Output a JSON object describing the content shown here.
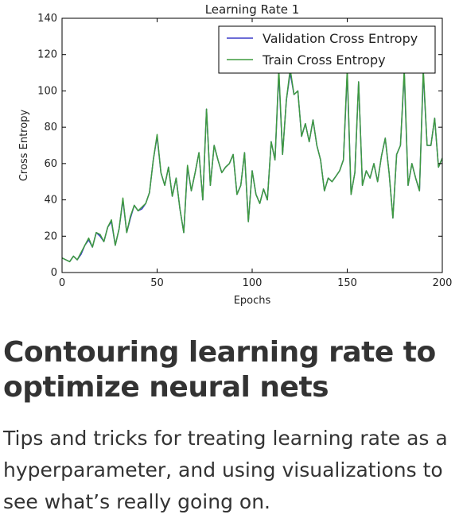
{
  "chart_data": {
    "type": "line",
    "title": "Learning Rate 1",
    "xlabel": "Epochs",
    "ylabel": "Cross Entropy",
    "xlim": [
      0,
      200
    ],
    "ylim": [
      0,
      140
    ],
    "xticks": [
      0,
      50,
      100,
      150,
      200
    ],
    "yticks": [
      0,
      20,
      40,
      60,
      80,
      100,
      120,
      140
    ],
    "grid": false,
    "legend_position": "top-right",
    "series": [
      {
        "name": "Validation Cross Entropy",
        "color": "#3b3bc8",
        "x": [
          0,
          2,
          4,
          6,
          8,
          10,
          12,
          14,
          16,
          18,
          20,
          22,
          24,
          26,
          28,
          30,
          32,
          34,
          36,
          38,
          40,
          42,
          44,
          46,
          48,
          50,
          52,
          54,
          56,
          58,
          60,
          62,
          64,
          66,
          68,
          70,
          72,
          74,
          76,
          78,
          80,
          82,
          84,
          86,
          88,
          90,
          92,
          94,
          96,
          98,
          100,
          102,
          104,
          106,
          108,
          110,
          112,
          114,
          116,
          118,
          120,
          122,
          124,
          126,
          128,
          130,
          132,
          134,
          136,
          138,
          140,
          142,
          144,
          146,
          148,
          150,
          152,
          154,
          156,
          158,
          160,
          162,
          164,
          166,
          168,
          170,
          172,
          174,
          176,
          178,
          180,
          182,
          184,
          186,
          188,
          190,
          192,
          194,
          196,
          198,
          200
        ],
        "y": [
          8,
          7,
          6,
          9,
          7,
          10,
          15,
          18,
          14,
          22,
          20,
          17,
          25,
          28,
          15,
          24,
          40,
          22,
          30,
          37,
          34,
          35,
          38,
          44,
          62,
          75,
          55,
          48,
          58,
          42,
          52,
          35,
          22,
          58,
          45,
          55,
          66,
          40,
          90,
          48,
          70,
          62,
          55,
          58,
          60,
          65,
          43,
          48,
          66,
          28,
          56,
          43,
          38,
          46,
          40,
          72,
          62,
          110,
          65,
          95,
          110,
          98,
          100,
          75,
          82,
          72,
          84,
          70,
          62,
          45,
          52,
          50,
          53,
          56,
          62,
          110,
          43,
          55,
          105,
          48,
          56,
          52,
          60,
          50,
          64,
          74,
          55,
          30,
          65,
          70,
          110,
          48,
          60,
          52,
          45,
          110,
          70,
          70,
          85,
          58,
          63
        ]
      },
      {
        "name": "Train Cross Entropy",
        "color": "#3f9b3f",
        "x": [
          0,
          2,
          4,
          6,
          8,
          10,
          12,
          14,
          16,
          18,
          20,
          22,
          24,
          26,
          28,
          30,
          32,
          34,
          36,
          38,
          40,
          42,
          44,
          46,
          48,
          50,
          52,
          54,
          56,
          58,
          60,
          62,
          64,
          66,
          68,
          70,
          72,
          74,
          76,
          78,
          80,
          82,
          84,
          86,
          88,
          90,
          92,
          94,
          96,
          98,
          100,
          102,
          104,
          106,
          108,
          110,
          112,
          114,
          116,
          118,
          120,
          122,
          124,
          126,
          128,
          130,
          132,
          134,
          136,
          138,
          140,
          142,
          144,
          146,
          148,
          150,
          152,
          154,
          156,
          158,
          160,
          162,
          164,
          166,
          168,
          170,
          172,
          174,
          176,
          178,
          180,
          182,
          184,
          186,
          188,
          190,
          192,
          194,
          196,
          198,
          200
        ],
        "y": [
          8,
          7,
          6,
          9,
          7,
          11,
          15,
          19,
          14,
          22,
          21,
          17,
          25,
          29,
          15,
          24,
          41,
          22,
          31,
          37,
          34,
          36,
          38,
          44,
          62,
          76,
          55,
          48,
          58,
          42,
          52,
          35,
          22,
          59,
          45,
          55,
          66,
          40,
          90,
          48,
          70,
          62,
          55,
          58,
          60,
          65,
          43,
          48,
          66,
          28,
          56,
          43,
          38,
          46,
          40,
          72,
          62,
          112,
          65,
          95,
          112,
          98,
          100,
          75,
          82,
          72,
          84,
          70,
          62,
          45,
          52,
          50,
          53,
          56,
          62,
          112,
          43,
          55,
          105,
          48,
          56,
          52,
          60,
          50,
          64,
          74,
          55,
          30,
          65,
          70,
          112,
          48,
          60,
          52,
          45,
          112,
          70,
          70,
          85,
          58,
          63
        ]
      }
    ]
  },
  "article": {
    "headline": "Contouring learning rate to optimize neural nets",
    "summary": "Tips and tricks for treating learning rate as a hyperparameter, and using visualizations to see what’s really going on."
  }
}
